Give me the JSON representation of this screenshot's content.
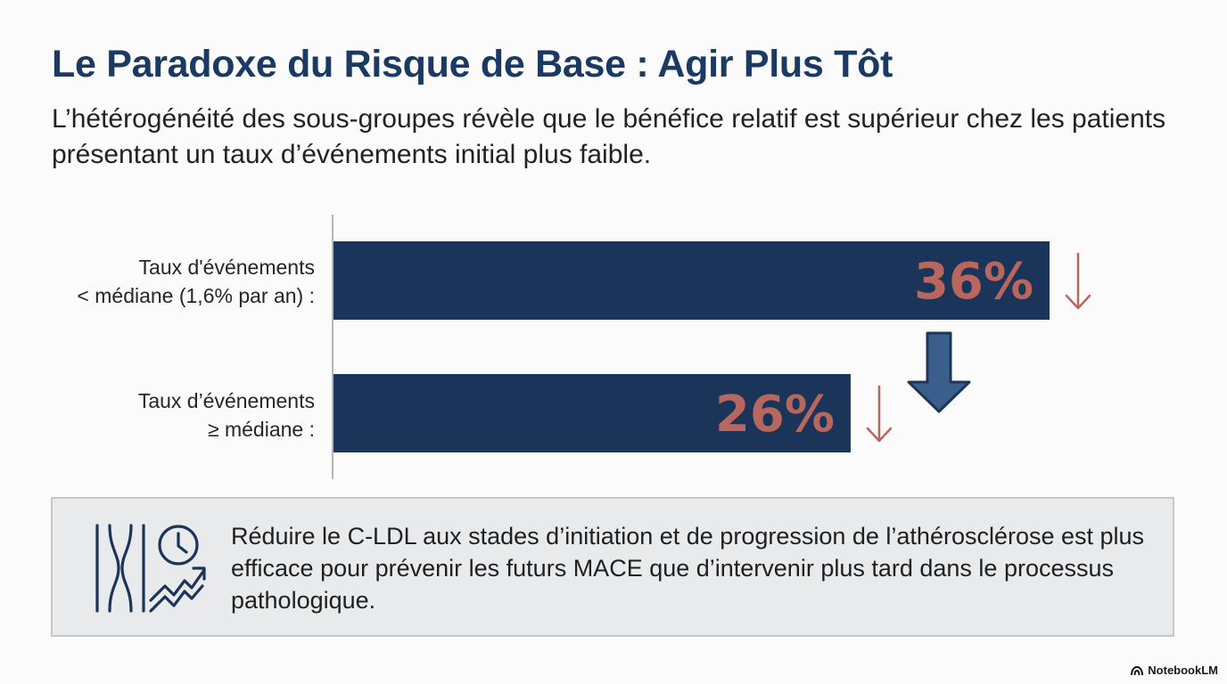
{
  "header": {
    "title": "Le Paradoxe du Risque de Base : Agir Plus Tôt",
    "subtitle": "L’hétérogénéité des sous-groupes révèle que le bénéfice relatif est supérieur chez les patients présentant un taux d’événements initial plus faible."
  },
  "chart_data": {
    "type": "bar",
    "orientation": "horizontal",
    "categories": [
      "Taux d'événements < médiane (1,6% par an) :",
      "Taux d’événements ≥ médiane :"
    ],
    "category_lines": [
      [
        "Taux d'événements",
        "< médiane (1,6% par an) :"
      ],
      [
        "Taux d’événements",
        "≥ médiane :"
      ]
    ],
    "values": [
      36,
      26
    ],
    "value_labels": [
      "36%",
      "26%"
    ],
    "unit": "%",
    "xlim": [
      0,
      36
    ],
    "title": "",
    "xlabel": "",
    "ylabel": "",
    "grid": false,
    "annotation": "reduction arrows (↓) next to each value; large down arrow between bars"
  },
  "colors": {
    "title": "#1b3a63",
    "bar": "#1b3459",
    "value_label": "#b8675e",
    "small_arrow": "#b8675e",
    "big_arrow_fill": "#3a5f8c",
    "big_arrow_stroke": "#1d3557",
    "callout_bg": "#e9eaeb"
  },
  "callout": {
    "icon": "atherosclerosis-timeline-icon",
    "text": "Réduire le C-LDL aux stades d’initiation et de progression de l’athérosclérose est plus efficace pour prévenir les futurs MACE que d’intervenir plus tard dans le processus pathologique."
  },
  "footer": {
    "brand": "NotebookLM",
    "brand_icon": "notebooklm-logo-icon"
  }
}
